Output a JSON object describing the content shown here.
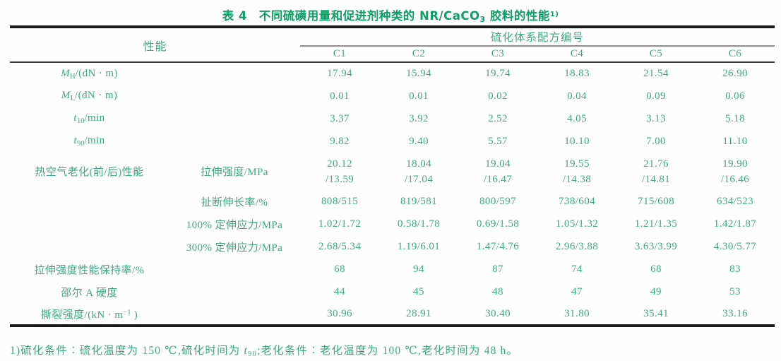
{
  "colors": {
    "text": "#3fa885",
    "title": "#0e9e66",
    "rule_heavy": "#181818",
    "rule_header": "#3d3d3d",
    "rule_mid": "#8f8f8f",
    "background": "#fefefe"
  },
  "title": {
    "segments": [
      {
        "t": "表 4　不同硫磺用量和促进剂种类的 NR/CaCO"
      },
      {
        "t": "3",
        "s": "sub"
      },
      {
        "t": " 胶料的性能"
      },
      {
        "t": "1)",
        "s": "sup"
      }
    ]
  },
  "table": {
    "header": {
      "performance_label": "性能",
      "system_label": "硫化体系配方编号",
      "columns": [
        "C1",
        "C2",
        "C3",
        "C4",
        "C5",
        "C6"
      ]
    },
    "rows": [
      {
        "group": null,
        "label_col": 1,
        "label": [
          {
            "t": "M",
            "s": "i"
          },
          {
            "t": "H",
            "s": "sub"
          },
          {
            "t": "/(dN · m)"
          }
        ],
        "values": [
          "17.94",
          "15.94",
          "19.74",
          "18.83",
          "21.54",
          "26.90"
        ]
      },
      {
        "group": null,
        "label_col": 1,
        "label": [
          {
            "t": "M",
            "s": "i"
          },
          {
            "t": "L",
            "s": "sub"
          },
          {
            "t": "/(dN · m)"
          }
        ],
        "values": [
          "0.01",
          "0.01",
          "0.02",
          "0.04",
          "0.09",
          "0.06"
        ]
      },
      {
        "group": null,
        "label_col": 1,
        "label": [
          {
            "t": "t",
            "s": "i"
          },
          {
            "t": "10",
            "s": "sub"
          },
          {
            "t": "/min"
          }
        ],
        "values": [
          "3.37",
          "3.92",
          "2.52",
          "4.05",
          "3.13",
          "5.18"
        ]
      },
      {
        "group": null,
        "label_col": 1,
        "label": [
          {
            "t": "t",
            "s": "i"
          },
          {
            "t": "90",
            "s": "sub"
          },
          {
            "t": "/min"
          }
        ],
        "values": [
          "9.82",
          "9.40",
          "5.57",
          "10.10",
          "7.00",
          "11.10"
        ]
      },
      {
        "group": "热空气老化(前/后)性能",
        "label_col": 2,
        "tall": true,
        "label": [
          {
            "t": "拉伸强度/MPa"
          }
        ],
        "values": [
          "20.12\n/13.59",
          "18.04\n/17.04",
          "19.04\n/16.47",
          "19.55\n/14.38",
          "21.76\n/14.81",
          "19.90\n/16.46"
        ]
      },
      {
        "group": "",
        "label_col": 2,
        "label": [
          {
            "t": "扯断伸长率/%"
          }
        ],
        "values": [
          "808/515",
          "819/581",
          "800/597",
          "738/604",
          "715/608",
          "634/523"
        ]
      },
      {
        "group": "",
        "label_col": 2,
        "label": [
          {
            "t": "100% 定伸应力/MPa"
          }
        ],
        "values": [
          "1.02/1.72",
          "0.58/1.78",
          "0.69/1.58",
          "1.05/1.32",
          "1.21/1.35",
          "1.42/1.87"
        ]
      },
      {
        "group": "",
        "label_col": 2,
        "label": [
          {
            "t": "300% 定伸应力/MPa"
          }
        ],
        "values": [
          "2.68/5.34",
          "1.19/6.01",
          "1.47/4.76",
          "2.96/3.88",
          "3.63/3.99",
          "4.30/5.77"
        ]
      },
      {
        "group": null,
        "label_col": 1,
        "label": [
          {
            "t": "拉伸强度性能保持率/%"
          }
        ],
        "values": [
          "68",
          "94",
          "87",
          "74",
          "68",
          "83"
        ]
      },
      {
        "group": null,
        "label_col": 1,
        "label": [
          {
            "t": "邵尔 A 硬度"
          }
        ],
        "values": [
          "44",
          "45",
          "48",
          "47",
          "49",
          "53"
        ]
      },
      {
        "group": null,
        "label_col": 1,
        "label": [
          {
            "t": "撕裂强度/(kN · m"
          },
          {
            "t": "−1",
            "s": "sup"
          },
          {
            "t": " )"
          }
        ],
        "values": [
          "30.96",
          "28.91",
          "30.40",
          "31.80",
          "35.41",
          "33.16"
        ]
      }
    ]
  },
  "footnote": {
    "segments": [
      {
        "t": "1)硫化条件∶硫化温度为 150 ℃,硫化时间为 "
      },
      {
        "t": "t",
        "s": "i"
      },
      {
        "t": "90",
        "s": "sub"
      },
      {
        "t": ";老化条件∶老化温度为 100 ℃,老化时间为 48 h。"
      }
    ]
  }
}
